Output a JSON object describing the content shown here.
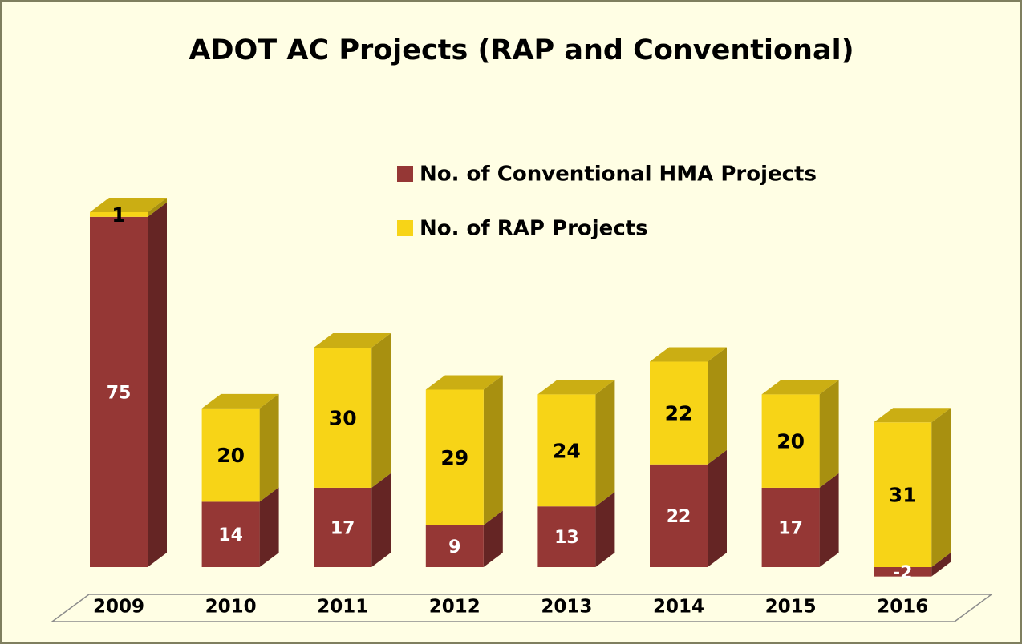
{
  "chart_data": {
    "type": "bar3d-stacked",
    "title": "ADOT AC Projects (RAP and Conventional)",
    "categories": [
      "2009",
      "2010",
      "2011",
      "2012",
      "2013",
      "2014",
      "2015",
      "2016"
    ],
    "series": [
      {
        "name": "No. of Conventional HMA Projects",
        "color": "#953735",
        "values": [
          75,
          14,
          17,
          9,
          13,
          22,
          17,
          -2
        ]
      },
      {
        "name": "No. of RAP Projects",
        "color": "#f7d417",
        "values": [
          1,
          20,
          30,
          29,
          24,
          22,
          20,
          31
        ]
      }
    ],
    "legend": "upper right"
  }
}
